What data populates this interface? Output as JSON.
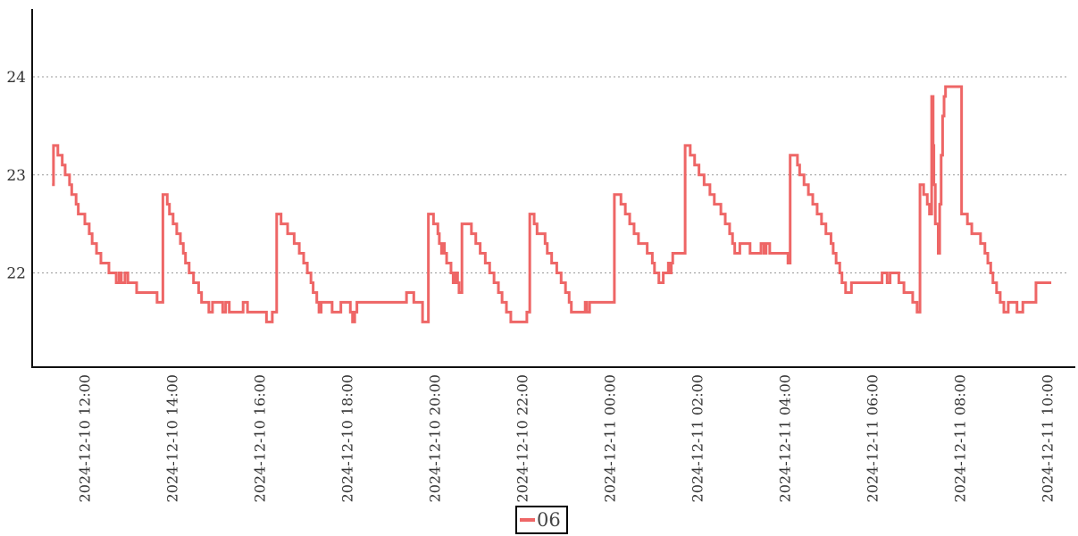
{
  "chart": {
    "legend": {
      "label": "06",
      "line_color": "#ee6666"
    },
    "colors": {
      "line": "#ee6666",
      "axis": "#111111",
      "grid": "#999999",
      "tick_text": "#333333"
    }
  },
  "chart_data": {
    "type": "line",
    "step": "after",
    "title": "",
    "xlabel": "",
    "ylabel": "",
    "legend_position": "bottom-center",
    "grid": "horizontal-dotted",
    "x_unit": "minutes since 2024-12-10 00:00",
    "xlim": [
      648,
      2078
    ],
    "ylim": [
      21.04,
      24.69
    ],
    "y_ticks": [
      22,
      23,
      24
    ],
    "y_tick_labels": [
      "22",
      "23",
      "24"
    ],
    "x_ticks": [
      720,
      840,
      960,
      1080,
      1200,
      1320,
      1440,
      1560,
      1680,
      1800,
      1920,
      2040
    ],
    "x_tick_labels": [
      "2024-12-10 12:00",
      "2024-12-10 14:00",
      "2024-12-10 16:00",
      "2024-12-10 18:00",
      "2024-12-10 20:00",
      "2024-12-10 22:00",
      "2024-12-11 00:00",
      "2024-12-11 02:00",
      "2024-12-11 04:00",
      "2024-12-11 06:00",
      "2024-12-11 08:00",
      "2024-12-11 10:00"
    ],
    "series": [
      {
        "name": "06",
        "color": "#ee6666",
        "points": [
          [
            675,
            22.9
          ],
          [
            677,
            23.3
          ],
          [
            683,
            23.2
          ],
          [
            689,
            23.1
          ],
          [
            693,
            23.0
          ],
          [
            699,
            22.9
          ],
          [
            702,
            22.8
          ],
          [
            708,
            22.7
          ],
          [
            711,
            22.6
          ],
          [
            720,
            22.5
          ],
          [
            726,
            22.4
          ],
          [
            730,
            22.3
          ],
          [
            736,
            22.2
          ],
          [
            742,
            22.1
          ],
          [
            753,
            22.0
          ],
          [
            763,
            21.9
          ],
          [
            767,
            22.0
          ],
          [
            770,
            21.9
          ],
          [
            775,
            22.0
          ],
          [
            779,
            21.9
          ],
          [
            791,
            21.8
          ],
          [
            819,
            21.7
          ],
          [
            827,
            22.8
          ],
          [
            833,
            22.7
          ],
          [
            836,
            22.6
          ],
          [
            841,
            22.5
          ],
          [
            846,
            22.4
          ],
          [
            851,
            22.3
          ],
          [
            855,
            22.2
          ],
          [
            858,
            22.1
          ],
          [
            863,
            22.0
          ],
          [
            869,
            21.9
          ],
          [
            876,
            21.8
          ],
          [
            880,
            21.7
          ],
          [
            890,
            21.6
          ],
          [
            895,
            21.7
          ],
          [
            909,
            21.6
          ],
          [
            913,
            21.7
          ],
          [
            918,
            21.6
          ],
          [
            937,
            21.7
          ],
          [
            943,
            21.6
          ],
          [
            969,
            21.5
          ],
          [
            977,
            21.6
          ],
          [
            983,
            22.6
          ],
          [
            989,
            22.5
          ],
          [
            998,
            22.4
          ],
          [
            1007,
            22.3
          ],
          [
            1014,
            22.2
          ],
          [
            1020,
            22.1
          ],
          [
            1025,
            22.0
          ],
          [
            1030,
            21.9
          ],
          [
            1033,
            21.8
          ],
          [
            1038,
            21.7
          ],
          [
            1041,
            21.6
          ],
          [
            1044,
            21.7
          ],
          [
            1059,
            21.6
          ],
          [
            1071,
            21.7
          ],
          [
            1084,
            21.6
          ],
          [
            1087,
            21.5
          ],
          [
            1090,
            21.6
          ],
          [
            1093,
            21.7
          ],
          [
            1161,
            21.8
          ],
          [
            1171,
            21.7
          ],
          [
            1183,
            21.5
          ],
          [
            1191,
            22.6
          ],
          [
            1198,
            22.5
          ],
          [
            1204,
            22.4
          ],
          [
            1206,
            22.3
          ],
          [
            1209,
            22.2
          ],
          [
            1211,
            22.3
          ],
          [
            1213,
            22.2
          ],
          [
            1216,
            22.1
          ],
          [
            1222,
            22.0
          ],
          [
            1225,
            21.9
          ],
          [
            1228,
            22.0
          ],
          [
            1231,
            21.9
          ],
          [
            1233,
            21.8
          ],
          [
            1237,
            22.5
          ],
          [
            1250,
            22.4
          ],
          [
            1256,
            22.3
          ],
          [
            1262,
            22.2
          ],
          [
            1269,
            22.1
          ],
          [
            1275,
            22.0
          ],
          [
            1281,
            21.9
          ],
          [
            1287,
            21.8
          ],
          [
            1292,
            21.7
          ],
          [
            1298,
            21.6
          ],
          [
            1304,
            21.5
          ],
          [
            1326,
            21.6
          ],
          [
            1330,
            22.6
          ],
          [
            1336,
            22.5
          ],
          [
            1340,
            22.4
          ],
          [
            1351,
            22.3
          ],
          [
            1354,
            22.2
          ],
          [
            1360,
            22.1
          ],
          [
            1367,
            22.0
          ],
          [
            1373,
            21.9
          ],
          [
            1379,
            21.8
          ],
          [
            1384,
            21.7
          ],
          [
            1387,
            21.6
          ],
          [
            1406,
            21.7
          ],
          [
            1408,
            21.6
          ],
          [
            1412,
            21.7
          ],
          [
            1446,
            22.8
          ],
          [
            1455,
            22.7
          ],
          [
            1461,
            22.6
          ],
          [
            1467,
            22.5
          ],
          [
            1473,
            22.4
          ],
          [
            1479,
            22.3
          ],
          [
            1491,
            22.2
          ],
          [
            1498,
            22.1
          ],
          [
            1501,
            22.0
          ],
          [
            1507,
            21.9
          ],
          [
            1513,
            22.0
          ],
          [
            1520,
            22.1
          ],
          [
            1522,
            22.0
          ],
          [
            1524,
            22.1
          ],
          [
            1526,
            22.2
          ],
          [
            1543,
            23.3
          ],
          [
            1550,
            23.2
          ],
          [
            1556,
            23.1
          ],
          [
            1562,
            23.0
          ],
          [
            1569,
            22.9
          ],
          [
            1577,
            22.8
          ],
          [
            1583,
            22.7
          ],
          [
            1592,
            22.6
          ],
          [
            1598,
            22.5
          ],
          [
            1604,
            22.4
          ],
          [
            1608,
            22.3
          ],
          [
            1611,
            22.2
          ],
          [
            1618,
            22.3
          ],
          [
            1632,
            22.2
          ],
          [
            1647,
            22.3
          ],
          [
            1651,
            22.2
          ],
          [
            1654,
            22.3
          ],
          [
            1659,
            22.2
          ],
          [
            1684,
            22.1
          ],
          [
            1687,
            23.2
          ],
          [
            1697,
            23.1
          ],
          [
            1700,
            23.0
          ],
          [
            1706,
            22.9
          ],
          [
            1712,
            22.8
          ],
          [
            1718,
            22.7
          ],
          [
            1724,
            22.6
          ],
          [
            1730,
            22.5
          ],
          [
            1736,
            22.4
          ],
          [
            1743,
            22.3
          ],
          [
            1746,
            22.2
          ],
          [
            1750,
            22.1
          ],
          [
            1755,
            22.0
          ],
          [
            1758,
            21.9
          ],
          [
            1763,
            21.8
          ],
          [
            1771,
            21.9
          ],
          [
            1813,
            22.0
          ],
          [
            1820,
            21.9
          ],
          [
            1824,
            22.0
          ],
          [
            1836,
            21.9
          ],
          [
            1843,
            21.8
          ],
          [
            1855,
            21.7
          ],
          [
            1861,
            21.6
          ],
          [
            1865,
            22.9
          ],
          [
            1870,
            22.8
          ],
          [
            1875,
            22.7
          ],
          [
            1878,
            22.6
          ],
          [
            1881,
            23.8
          ],
          [
            1883,
            23.3
          ],
          [
            1884,
            22.9
          ],
          [
            1886,
            22.5
          ],
          [
            1890,
            22.2
          ],
          [
            1892,
            22.7
          ],
          [
            1894,
            23.2
          ],
          [
            1896,
            23.6
          ],
          [
            1898,
            23.8
          ],
          [
            1900,
            23.9
          ],
          [
            1922,
            22.6
          ],
          [
            1930,
            22.5
          ],
          [
            1936,
            22.4
          ],
          [
            1948,
            22.3
          ],
          [
            1954,
            22.2
          ],
          [
            1958,
            22.1
          ],
          [
            1962,
            22.0
          ],
          [
            1965,
            21.9
          ],
          [
            1970,
            21.8
          ],
          [
            1975,
            21.7
          ],
          [
            1980,
            21.6
          ],
          [
            1986,
            21.7
          ],
          [
            1998,
            21.6
          ],
          [
            2006,
            21.7
          ],
          [
            2024,
            21.9
          ],
          [
            2045,
            21.9
          ]
        ]
      }
    ]
  }
}
